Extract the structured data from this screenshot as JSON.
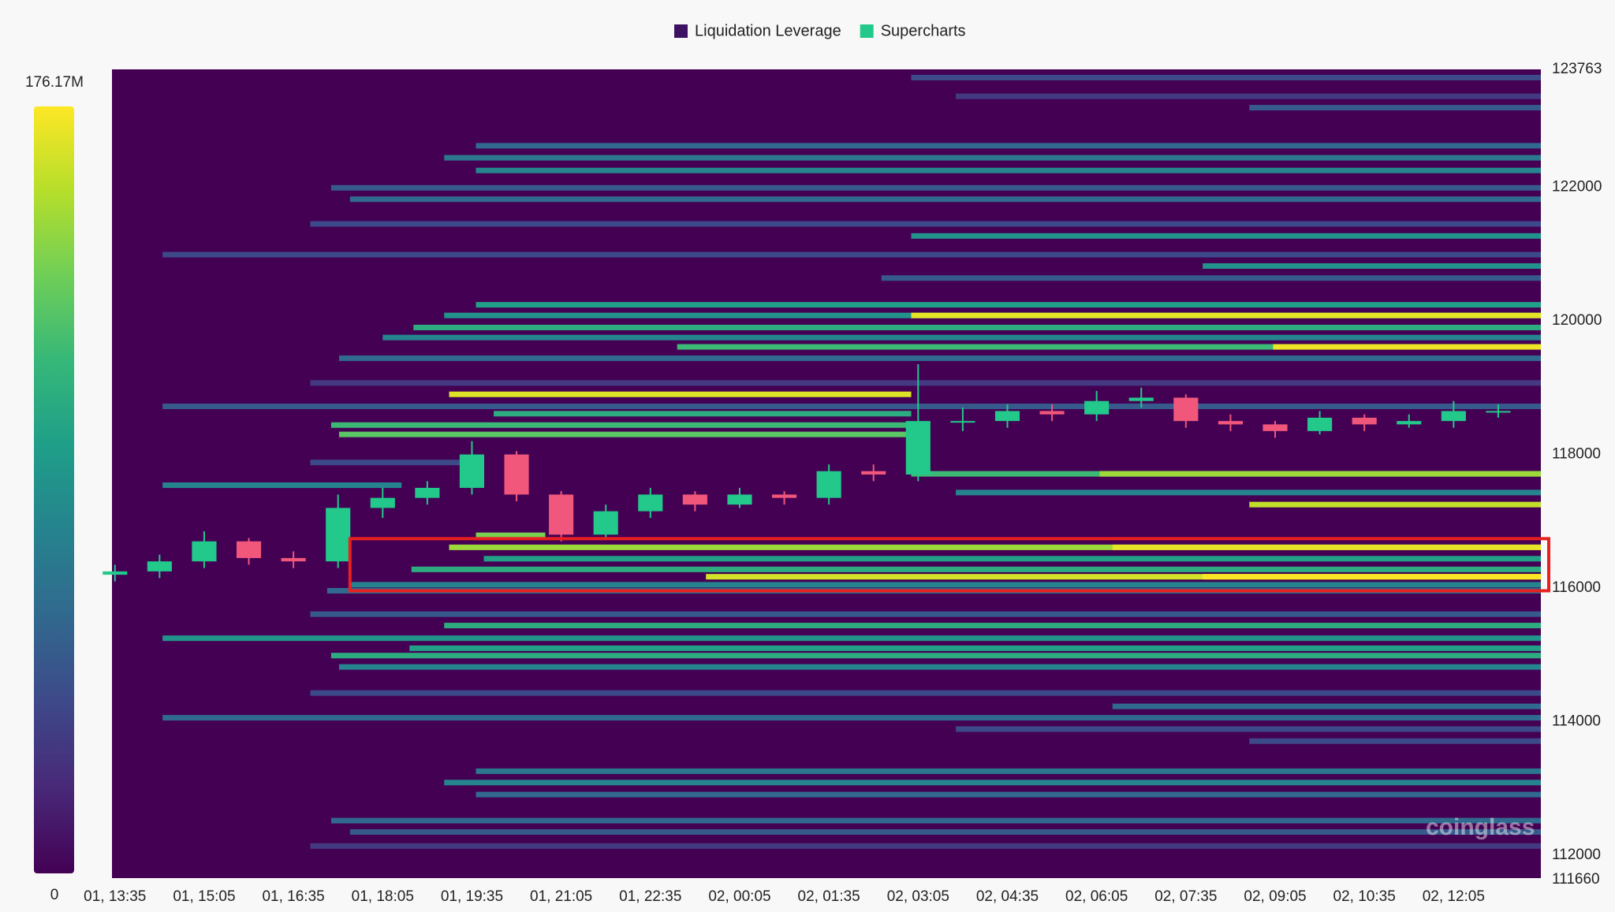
{
  "chart_data": {
    "type": "liquidation-heatmap",
    "legend": [
      {
        "name": "Liquidation Leverage",
        "color": "#3d1263"
      },
      {
        "name": "Supercharts",
        "color": "#22c98a"
      }
    ],
    "background": "#440154",
    "colorscale": [
      "#440154",
      "#482878",
      "#3e4989",
      "#31688e",
      "#26828e",
      "#1f9e89",
      "#35b779",
      "#6ece58",
      "#b5de2b",
      "#fde725"
    ],
    "colorlim": [
      0,
      176.17
    ],
    "colorticks": [
      {
        "value": 176.17,
        "label": "176.17M"
      },
      0
    ],
    "xlim": [
      -3,
      1438
    ],
    "xticks": [
      {
        "value": 0,
        "label": "01, 13:35"
      },
      {
        "value": 90,
        "label": "01, 15:05"
      },
      {
        "value": 180,
        "label": "01, 16:35"
      },
      {
        "value": 270,
        "label": "01, 18:05"
      },
      {
        "value": 360,
        "label": "01, 19:35"
      },
      {
        "value": 450,
        "label": "01, 21:05"
      },
      {
        "value": 540,
        "label": "01, 22:35"
      },
      {
        "value": 630,
        "label": "02, 00:05"
      },
      {
        "value": 720,
        "label": "02, 01:35"
      },
      {
        "value": 810,
        "label": "02, 03:05"
      },
      {
        "value": 900,
        "label": "02, 04:35"
      },
      {
        "value": 990,
        "label": "02, 06:05"
      },
      {
        "value": 1080,
        "label": "02, 07:35"
      },
      {
        "value": 1170,
        "label": "02, 09:05"
      },
      {
        "value": 1260,
        "label": "02, 10:35"
      },
      {
        "value": 1350,
        "label": "02, 12:05"
      }
    ],
    "ylim": [
      111660,
      123763
    ],
    "yticks": [
      123763,
      122000,
      120000,
      118000,
      116000,
      114000,
      112000,
      111660
    ],
    "bands": [
      {
        "price": 123640,
        "start": 803,
        "value": 40
      },
      {
        "price": 123360,
        "start": 848,
        "value": 30
      },
      {
        "price": 123190,
        "start": 1144,
        "value": 50
      },
      {
        "price": 122620,
        "start": 364,
        "value": 60
      },
      {
        "price": 122440,
        "start": 332,
        "value": 70
      },
      {
        "price": 122250,
        "start": 364,
        "value": 80
      },
      {
        "price": 121990,
        "start": 218,
        "value": 50
      },
      {
        "price": 121820,
        "start": 237,
        "value": 60
      },
      {
        "price": 121450,
        "start": 197,
        "value": 40
      },
      {
        "price": 121270,
        "start": 803,
        "value": 90
      },
      {
        "price": 120990,
        "start": 48,
        "value": 40
      },
      {
        "price": 120820,
        "start": 1097,
        "value": 90
      },
      {
        "price": 120640,
        "start": 773,
        "value": 50
      },
      {
        "price": 120240,
        "start": 364,
        "value": 100
      },
      {
        "price": 120080,
        "start": 332,
        "value": 90
      },
      {
        "price": 120080,
        "start": 803,
        "value": 170
      },
      {
        "price": 119900,
        "start": 301,
        "value": 110
      },
      {
        "price": 119750,
        "start": 270,
        "value": 80
      },
      {
        "price": 119610,
        "start": 567,
        "value": 120
      },
      {
        "price": 119610,
        "start": 1168,
        "value": 172
      },
      {
        "price": 119440,
        "start": 226,
        "value": 60
      },
      {
        "price": 119070,
        "start": 197,
        "value": 30
      },
      {
        "price": 118900,
        "start": 337,
        "end": 803,
        "value": 168
      },
      {
        "price": 118720,
        "start": 48,
        "value": 50
      },
      {
        "price": 118610,
        "start": 382,
        "end": 803,
        "value": 110
      },
      {
        "price": 118440,
        "start": 218,
        "end": 803,
        "value": 120
      },
      {
        "price": 118300,
        "start": 226,
        "end": 803,
        "value": 130
      },
      {
        "price": 117880,
        "start": 197,
        "end": 361,
        "value": 40
      },
      {
        "price": 117710,
        "start": 803,
        "value": 120
      },
      {
        "price": 117710,
        "start": 993,
        "value": 150
      },
      {
        "price": 117540,
        "start": 48,
        "end": 289,
        "value": 80
      },
      {
        "price": 117430,
        "start": 848,
        "value": 80
      },
      {
        "price": 117250,
        "start": 1144,
        "value": 160
      },
      {
        "price": 116790,
        "start": 364,
        "end": 434,
        "value": 140
      },
      {
        "price": 116610,
        "start": 337,
        "value": 150
      },
      {
        "price": 116610,
        "start": 1006,
        "value": 170
      },
      {
        "price": 116440,
        "start": 372,
        "value": 100
      },
      {
        "price": 116280,
        "start": 299,
        "value": 110
      },
      {
        "price": 116170,
        "start": 596,
        "value": 165
      },
      {
        "price": 116170,
        "start": 1097,
        "value": 176
      },
      {
        "price": 116050,
        "start": 237,
        "value": 80
      },
      {
        "price": 115960,
        "start": 214,
        "value": 60
      },
      {
        "price": 115610,
        "start": 197,
        "value": 50
      },
      {
        "price": 115440,
        "start": 332,
        "value": 110
      },
      {
        "price": 115250,
        "start": 48,
        "value": 90
      },
      {
        "price": 115100,
        "start": 297,
        "value": 100
      },
      {
        "price": 114990,
        "start": 218,
        "value": 110
      },
      {
        "price": 114820,
        "start": 226,
        "value": 80
      },
      {
        "price": 114430,
        "start": 197,
        "value": 40
      },
      {
        "price": 114230,
        "start": 1006,
        "value": 60
      },
      {
        "price": 114060,
        "start": 48,
        "value": 60
      },
      {
        "price": 113890,
        "start": 848,
        "value": 40
      },
      {
        "price": 113710,
        "start": 1144,
        "value": 40
      },
      {
        "price": 113260,
        "start": 364,
        "value": 70
      },
      {
        "price": 113090,
        "start": 332,
        "value": 80
      },
      {
        "price": 112910,
        "start": 364,
        "value": 60
      },
      {
        "price": 112520,
        "start": 218,
        "value": 60
      },
      {
        "price": 112350,
        "start": 237,
        "value": 50
      },
      {
        "price": 112140,
        "start": 197,
        "value": 30
      }
    ],
    "candles": {
      "up_color": "#22c98a",
      "down_color": "#f0577a",
      "t": [
        0,
        45,
        90,
        135,
        180,
        225,
        270,
        315,
        360,
        405,
        450,
        495,
        540,
        585,
        630,
        675,
        720,
        765,
        810,
        855,
        900,
        945,
        990,
        1035,
        1080,
        1125,
        1170,
        1215,
        1260,
        1305,
        1350,
        1395
      ],
      "open": [
        116200,
        116250,
        116400,
        116700,
        116450,
        116400,
        117200,
        117350,
        117500,
        118000,
        117400,
        116800,
        117150,
        117400,
        117250,
        117400,
        117350,
        117750,
        117700,
        118500,
        118500,
        118650,
        118600,
        118800,
        118850,
        118500,
        118450,
        118350,
        118550,
        118450,
        118500,
        118650
      ],
      "high": [
        116350,
        116500,
        116850,
        116750,
        116550,
        117400,
        117500,
        117600,
        118200,
        118050,
        117450,
        117250,
        117500,
        117450,
        117500,
        117450,
        117850,
        117850,
        119350,
        118700,
        118750,
        118750,
        118950,
        119000,
        118900,
        118600,
        118500,
        118650,
        118600,
        118600,
        118800,
        118750
      ],
      "low": [
        116100,
        116150,
        116300,
        116350,
        116300,
        116300,
        117050,
        117250,
        117400,
        117300,
        116700,
        116750,
        117050,
        117150,
        117200,
        117250,
        117250,
        117600,
        117600,
        118350,
        118400,
        118500,
        118500,
        118700,
        118400,
        118350,
        118250,
        118300,
        118350,
        118400,
        118400,
        118550
      ],
      "close": [
        116250,
        116400,
        116700,
        116450,
        116400,
        117200,
        117350,
        117500,
        118000,
        117400,
        116800,
        117150,
        117400,
        117250,
        117400,
        117350,
        117750,
        117700,
        118500,
        118500,
        118650,
        118600,
        118800,
        118850,
        118500,
        118450,
        118350,
        118550,
        118450,
        118500,
        118650,
        118650
      ]
    },
    "highlight": {
      "price_range": [
        115960,
        116740
      ],
      "start": 237,
      "color": "#e8201f"
    },
    "watermark": "coinglass"
  }
}
